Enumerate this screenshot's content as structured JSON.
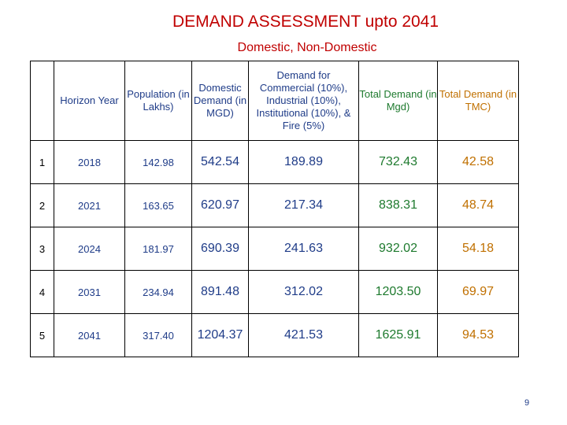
{
  "title": "DEMAND ASSESSMENT upto 2041",
  "subtitle": "Domestic, Non-Domestic",
  "table": {
    "headers": {
      "sno": "",
      "horizon_year": "Horizon Year",
      "population": "Population (in Lakhs)",
      "domestic_demand": "Domestic Demand (in MGD)",
      "non_domestic_demand": "Demand for Commercial (10%), Industrial (10%), Institutional (10%), & Fire (5%)",
      "total_mgd": "Total Demand (in Mgd)",
      "total_tmc": "Total Demand (in TMC)"
    },
    "rows": [
      {
        "sno": "1",
        "year": "2018",
        "population": "142.98",
        "domestic": "542.54",
        "non_domestic": "189.89",
        "total_mgd": "732.43",
        "total_tmc": "42.58"
      },
      {
        "sno": "2",
        "year": "2021",
        "population": "163.65",
        "domestic": "620.97",
        "non_domestic": "217.34",
        "total_mgd": "838.31",
        "total_tmc": "48.74"
      },
      {
        "sno": "3",
        "year": "2024",
        "population": "181.97",
        "domestic": "690.39",
        "non_domestic": "241.63",
        "total_mgd": "932.02",
        "total_tmc": "54.18"
      },
      {
        "sno": "4",
        "year": "2031",
        "population": "234.94",
        "domestic": "891.48",
        "non_domestic": "312.02",
        "total_mgd": "1203.50",
        "total_tmc": "69.97"
      },
      {
        "sno": "5",
        "year": "2041",
        "population": "317.40",
        "domestic": "1204.37",
        "non_domestic": "421.53",
        "total_mgd": "1625.91",
        "total_tmc": "94.53"
      }
    ]
  },
  "page_number": "9",
  "colors": {
    "title": "#c00000",
    "text_blue": "#1f3c88",
    "text_green": "#1e7a2e",
    "text_orange": "#c07000"
  }
}
